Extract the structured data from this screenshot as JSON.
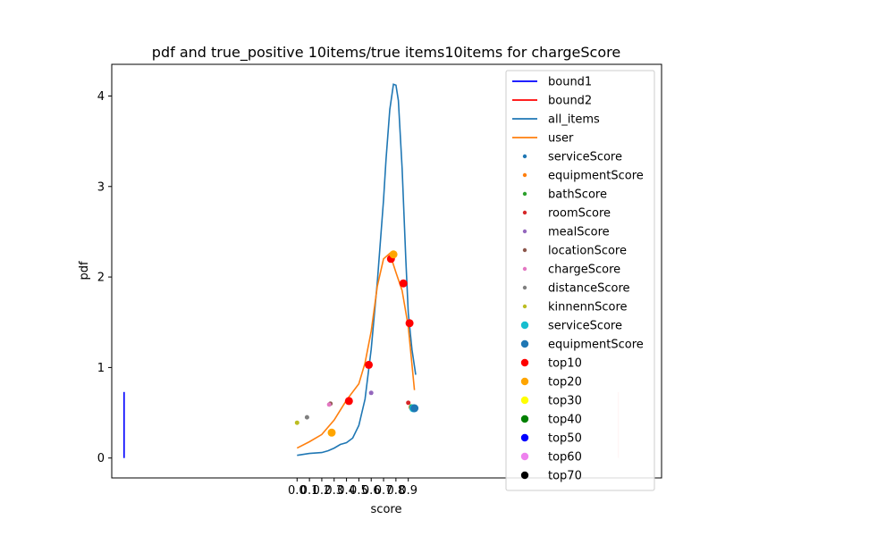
{
  "chart_data": {
    "type": "line",
    "title": "pdf and true_positive 10items/true items10items for chargeScore",
    "xlabel": "score",
    "ylabel": "pdf",
    "xlim": [
      -1.5,
      2.95
    ],
    "ylim": [
      -0.22,
      4.35
    ],
    "x_ticks": [
      0.0,
      0.1,
      0.2,
      0.3,
      0.4,
      0.5,
      0.6,
      0.7,
      0.8,
      0.9
    ],
    "x_tick_labels": [
      "0.0",
      "0.1",
      "0.2",
      "0.3",
      "0.4",
      "0.5",
      "0.6",
      "0.7",
      "0.8",
      "0.9"
    ],
    "y_ticks": [
      0,
      1,
      2,
      3,
      4
    ],
    "y_tick_labels": [
      "0",
      "1",
      "2",
      "3",
      "4"
    ],
    "grid": false,
    "legend_position": "top-right",
    "lines": [
      {
        "name": "bound1",
        "color": "#0000ff",
        "x": [
          -1.4,
          -1.4
        ],
        "y": [
          0,
          0.73
        ]
      },
      {
        "name": "bound2",
        "color": "#ff0000",
        "x": [
          2.6,
          2.6
        ],
        "y": [
          0,
          0.73
        ],
        "alpha": 0.25
      },
      {
        "name": "all_items",
        "color": "#1f77b4",
        "x": [
          0.0,
          0.1,
          0.2,
          0.25,
          0.3,
          0.35,
          0.4,
          0.45,
          0.5,
          0.55,
          0.6,
          0.65,
          0.7,
          0.72,
          0.75,
          0.78,
          0.8,
          0.82,
          0.85,
          0.88,
          0.9,
          0.93,
          0.96
        ],
        "y": [
          0.03,
          0.05,
          0.06,
          0.08,
          0.11,
          0.15,
          0.17,
          0.22,
          0.36,
          0.65,
          1.2,
          1.95,
          2.85,
          3.3,
          3.85,
          4.13,
          4.12,
          3.95,
          3.2,
          2.2,
          1.6,
          1.2,
          0.92
        ]
      },
      {
        "name": "user",
        "color": "#ff7f0e",
        "x": [
          0.0,
          0.1,
          0.2,
          0.3,
          0.4,
          0.5,
          0.55,
          0.6,
          0.65,
          0.7,
          0.75,
          0.8,
          0.85,
          0.9,
          0.95
        ],
        "y": [
          0.11,
          0.18,
          0.26,
          0.42,
          0.64,
          0.82,
          1.05,
          1.4,
          1.9,
          2.2,
          2.26,
          2.05,
          1.85,
          1.45,
          0.75
        ]
      }
    ],
    "scatter_small": [
      {
        "name": "serviceScore",
        "color": "#1f77b4",
        "x": [
          0.93
        ],
        "y": [
          0.55
        ]
      },
      {
        "name": "equipmentScore",
        "color": "#ff7f0e",
        "x": [
          0.92
        ],
        "y": [
          0.56
        ]
      },
      {
        "name": "bathScore",
        "color": "#2ca02c",
        "x": [
          0.925
        ],
        "y": [
          0.57
        ]
      },
      {
        "name": "roomScore",
        "color": "#d62728",
        "x": [
          0.9
        ],
        "y": [
          0.61
        ]
      },
      {
        "name": "mealScore",
        "color": "#9467bd",
        "x": [
          0.6
        ],
        "y": [
          0.72
        ]
      },
      {
        "name": "locationScore",
        "color": "#8c564b",
        "x": [
          0.27
        ],
        "y": [
          0.6
        ]
      },
      {
        "name": "chargeScore",
        "color": "#e377c2",
        "x": [
          0.26
        ],
        "y": [
          0.59
        ]
      },
      {
        "name": "distanceScore",
        "color": "#7f7f7f",
        "x": [
          0.08
        ],
        "y": [
          0.45
        ]
      },
      {
        "name": "kinnennScore",
        "color": "#bcbd22",
        "x": [
          0.0
        ],
        "y": [
          0.39
        ]
      }
    ],
    "scatter_large": [
      {
        "name": "serviceScore",
        "color": "#17becf",
        "x": [
          0.94
        ],
        "y": [
          0.55
        ]
      },
      {
        "name": "equipmentScore",
        "color": "#1f77b4",
        "x": [
          0.95
        ],
        "y": [
          0.55
        ]
      }
    ],
    "top_points": [
      {
        "name": "top10",
        "color": "#ff0000",
        "x": [
          0.42,
          0.58,
          0.76,
          0.86,
          0.91
        ],
        "y": [
          0.63,
          1.03,
          2.2,
          1.93,
          1.49
        ]
      },
      {
        "name": "top20",
        "color": "#ffa500",
        "x": [
          0.28,
          0.78
        ],
        "y": [
          0.28,
          2.25
        ]
      },
      {
        "name": "top30",
        "color": "#ffff00",
        "x": [],
        "y": []
      },
      {
        "name": "top40",
        "color": "#008000",
        "x": [],
        "y": []
      },
      {
        "name": "top50",
        "color": "#0000ff",
        "x": [],
        "y": []
      },
      {
        "name": "top60",
        "color": "#ee82ee",
        "x": [],
        "y": []
      },
      {
        "name": "top70",
        "color": "#000000",
        "x": [],
        "y": []
      }
    ]
  }
}
